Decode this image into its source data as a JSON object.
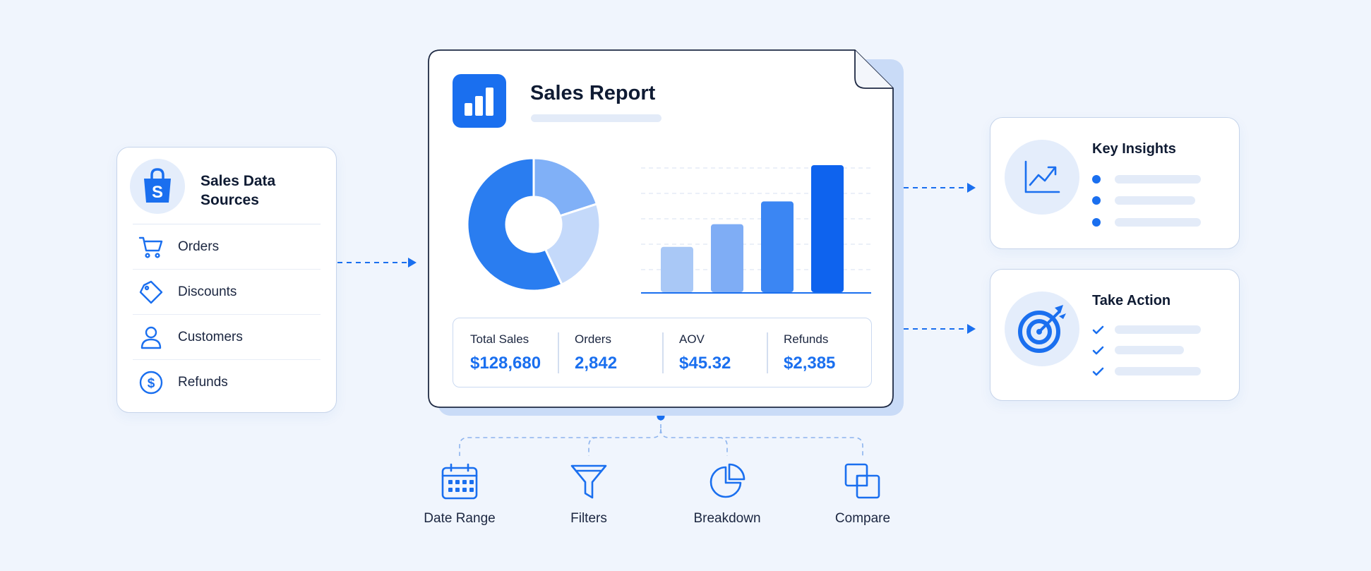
{
  "sources": {
    "title": "Sales Data Sources",
    "items": [
      {
        "label": "Orders",
        "icon": "cart-icon"
      },
      {
        "label": "Discounts",
        "icon": "tag-icon"
      },
      {
        "label": "Customers",
        "icon": "user-icon"
      },
      {
        "label": "Refunds",
        "icon": "dollar-circle-icon"
      }
    ]
  },
  "report": {
    "title": "Sales Report",
    "donut": {
      "segments": [
        {
          "value": 0.57
        },
        {
          "value": 0.2
        },
        {
          "value": 0.23
        }
      ]
    },
    "bars": {
      "values": [
        1,
        1.5,
        2,
        2.8
      ]
    },
    "metrics": [
      {
        "label": "Total Sales",
        "value": "$128,680"
      },
      {
        "label": "Orders",
        "value": "2,842"
      },
      {
        "label": "AOV",
        "value": "$45.32"
      },
      {
        "label": "Refunds",
        "value": "$2,385"
      }
    ]
  },
  "insights": {
    "title": "Key Insights"
  },
  "action": {
    "title": "Take Action"
  },
  "tools": [
    {
      "label": "Date Range",
      "icon": "calendar-icon"
    },
    {
      "label": "Filters",
      "icon": "funnel-icon"
    },
    {
      "label": "Breakdown",
      "icon": "pie-chart-icon"
    },
    {
      "label": "Compare",
      "icon": "compare-icon"
    }
  ],
  "colors": {
    "accent": "#1a6fef",
    "bar_shades": [
      "#a9c8f6",
      "#7fadf5",
      "#3b86f3",
      "#0e63ee"
    ],
    "donut_shades": [
      "#2a7df0",
      "#80b0f7",
      "#c4d9fa"
    ],
    "background": "#f0f5fd"
  }
}
